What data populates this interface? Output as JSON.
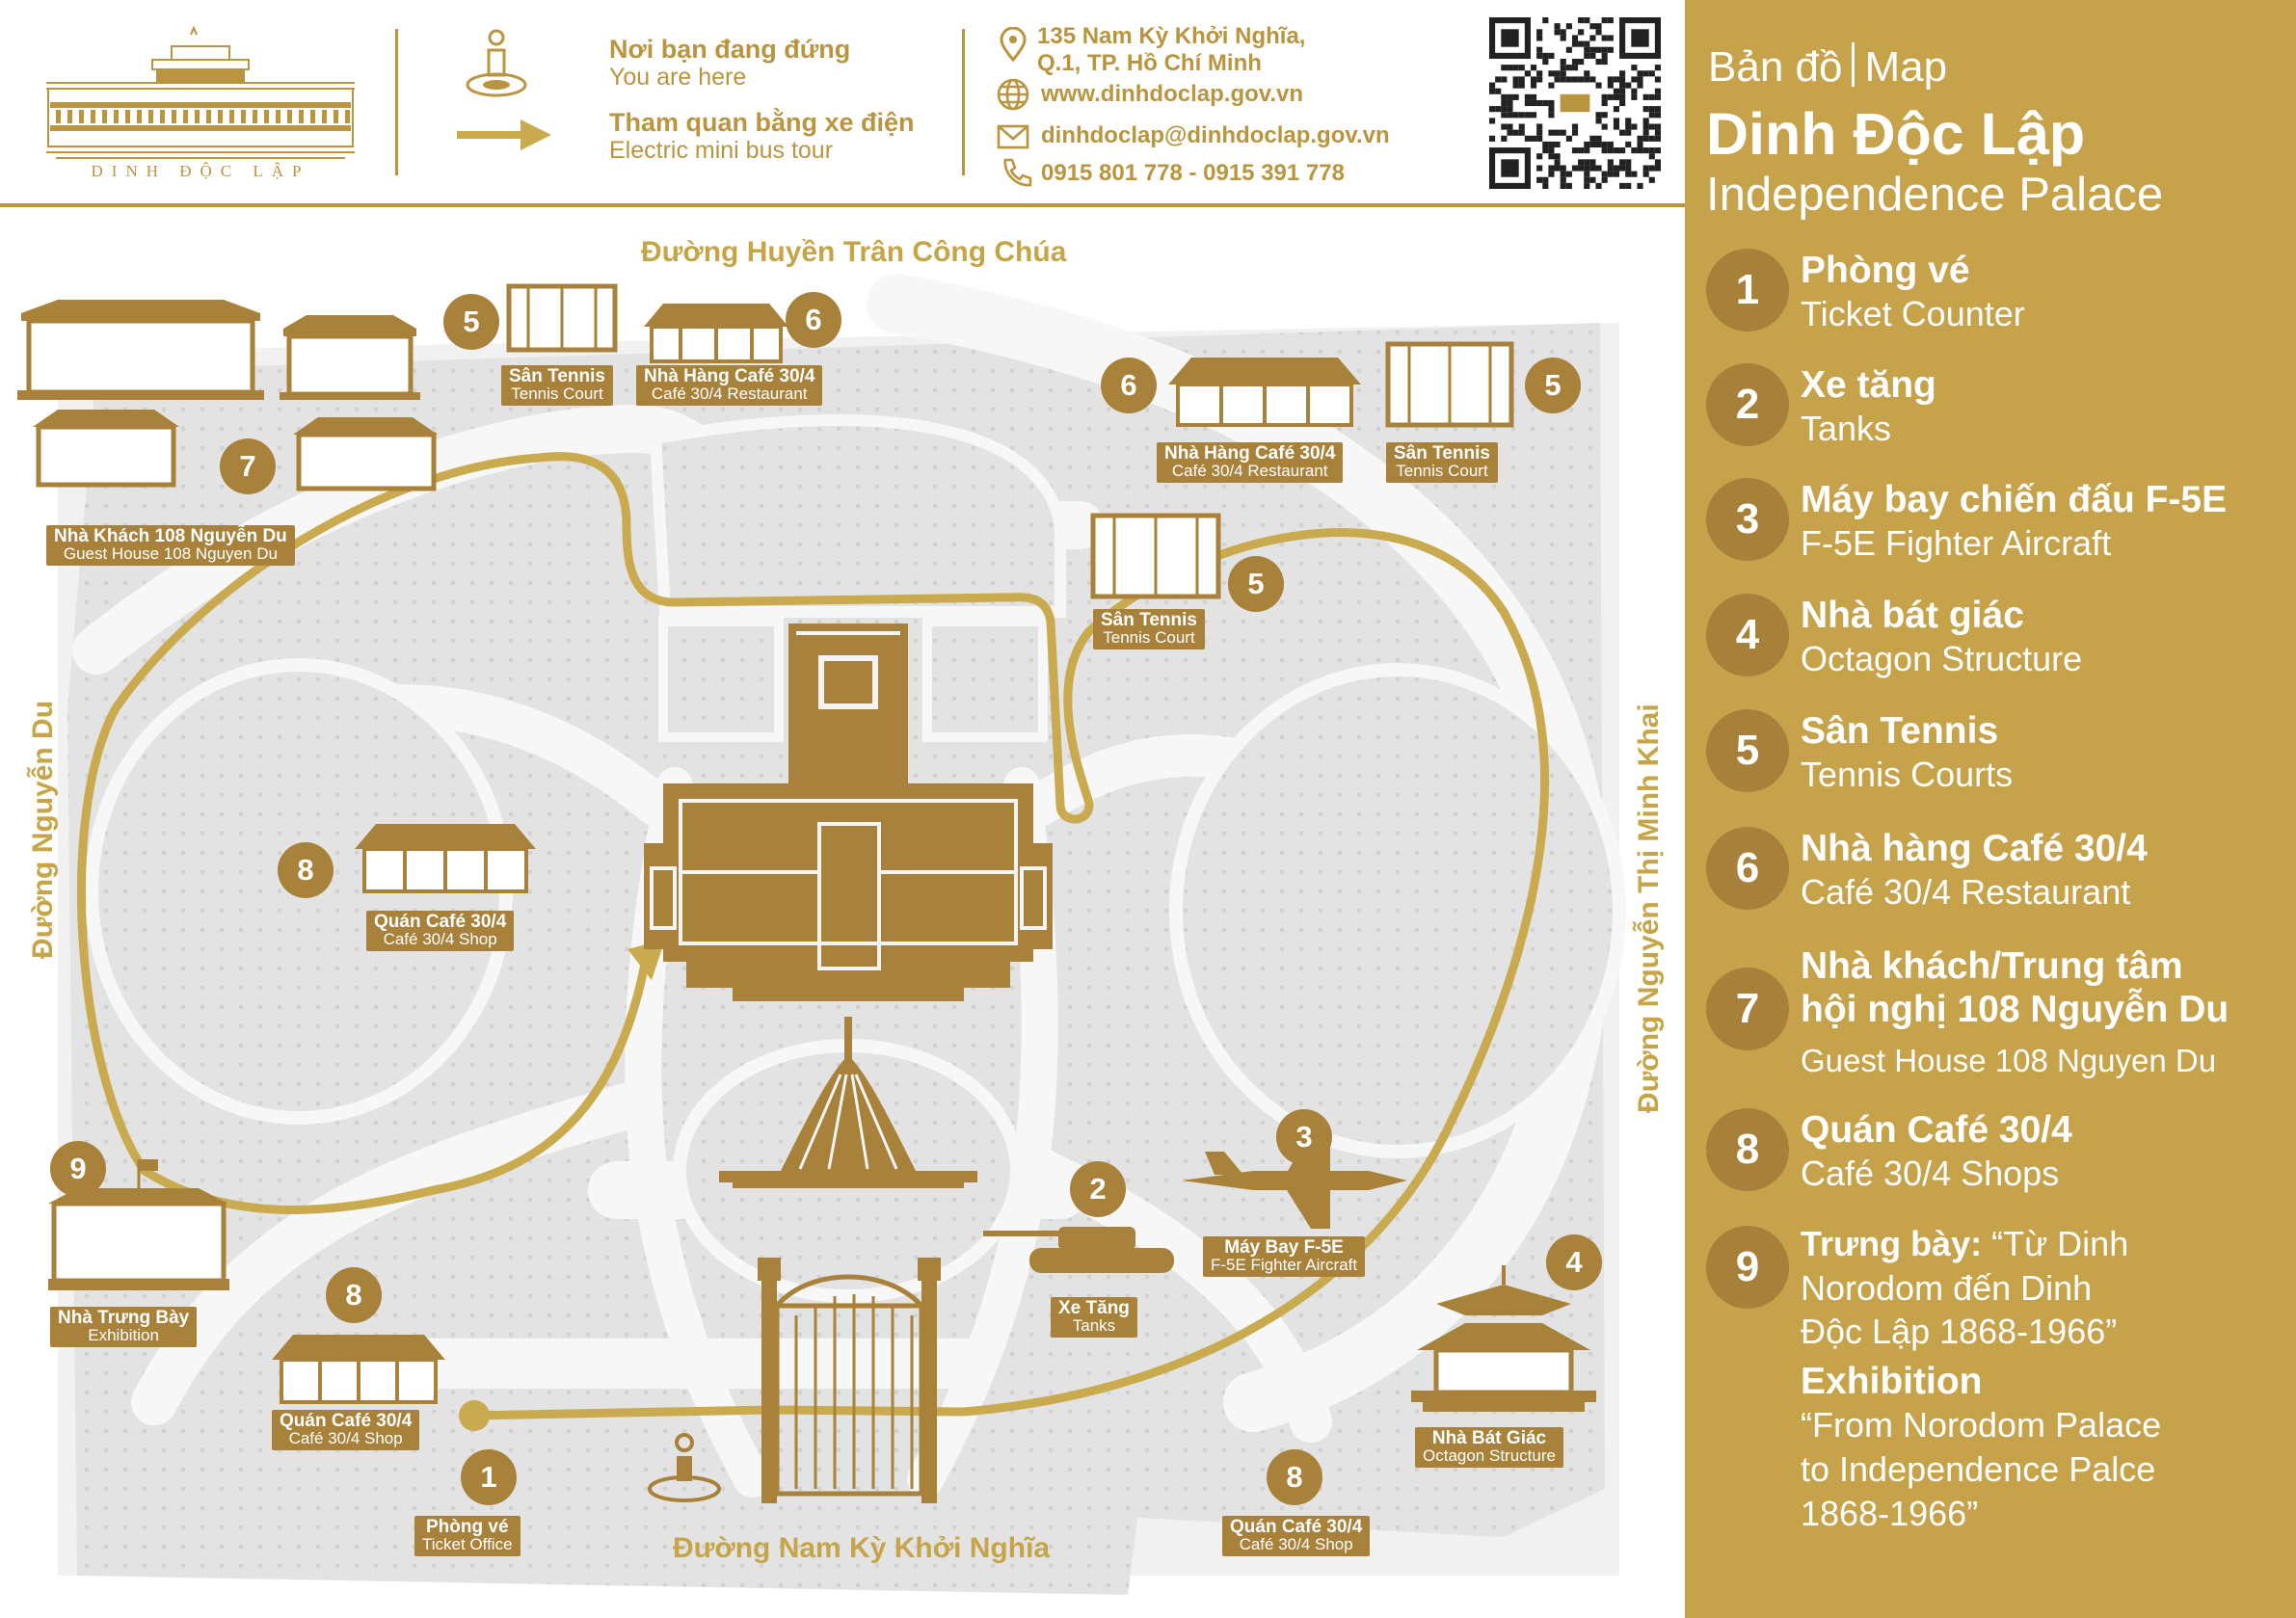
{
  "header": {
    "logo_text": "DINH ĐỘC LẬP",
    "legend": {
      "you_are_here_vi": "Nơi bạn đang đứng",
      "you_are_here_en": "You are here",
      "bus_tour_vi": "Tham quan bằng xe điện",
      "bus_tour_en": "Electric mini bus tour"
    },
    "contact": {
      "address_line1": "135 Nam Kỳ Khởi Nghĩa,",
      "address_line2": "Q.1, TP. Hồ Chí Minh",
      "website": "www.dinhdoclap.gov.vn",
      "email": "dinhdoclap@dinhdoclap.gov.vn",
      "phone": "0915 801 778 - 0915 391 778"
    }
  },
  "colors": {
    "gold": "#b8953e",
    "panel_gold": "#c6a34b",
    "badge_brown": "#a8823a",
    "route_gold": "#c9aa4e",
    "ground_gray": "#e3e3e3",
    "path_white": "#f4f4f4"
  },
  "icons": {
    "you_are_here": "location-person-icon",
    "bus_tour": "arrow-right-icon",
    "address": "map-pin-icon",
    "website": "globe-icon",
    "email": "envelope-icon",
    "phone": "phone-icon",
    "qr": "qr-code-icon"
  },
  "roads": {
    "north": "Đường Huyền Trân Công Chúa",
    "south": "Đường Nam Kỳ Khởi Nghĩa",
    "west": "Đường Nguyễn Du",
    "east": "Đường Nguyễn Thị Minh Khai"
  },
  "map_labels": {
    "tennis_top": {
      "vi": "Sân Tennis",
      "en": "Tennis Court",
      "num": "5"
    },
    "cafe_top": {
      "vi": "Nhà Hàng Café 30/4",
      "en": "Café 30/4 Restaurant",
      "num": "6"
    },
    "cafe_right": {
      "vi": "Nhà Hàng Café 30/4",
      "en": "Café 30/4 Restaurant",
      "num": "6"
    },
    "tennis_right_top": {
      "vi": "Sân Tennis",
      "en": "Tennis Court",
      "num": "5"
    },
    "tennis_right_mid": {
      "vi": "Sân Tennis",
      "en": "Tennis Court",
      "num": "5"
    },
    "guest_house": {
      "vi": "Nhà Khách 108 Nguyễn Du",
      "en": "Guest House 108 Nguyen Du",
      "num": "7"
    },
    "shop_west": {
      "vi": "Quán Café 30/4",
      "en": "Café 30/4 Shop",
      "num": "8"
    },
    "exhibition": {
      "vi": "Nhà Trưng Bày",
      "en": "Exhibition",
      "num": "9"
    },
    "shop_southwest": {
      "vi": "Quán Café 30/4",
      "en": "Café 30/4 Shop",
      "num": "8"
    },
    "ticket": {
      "vi": "Phòng vé",
      "en": "Ticket Office",
      "num": "1"
    },
    "tanks": {
      "vi": "Xe Tăng",
      "en": "Tanks",
      "num": "2"
    },
    "aircraft": {
      "vi": "Máy Bay F-5E",
      "en": "F-5E Fighter Aircraft",
      "num": "3"
    },
    "octagon": {
      "vi": "Nhà Bát Giác",
      "en": "Octagon Structure",
      "num": "4"
    },
    "shop_southeast": {
      "vi": "Quán Café 30/4",
      "en": "Café 30/4 Shop",
      "num": "8"
    }
  },
  "side": {
    "title_vi": "Bản đồ",
    "title_en": "Map",
    "name_vi": "Dinh Độc Lập",
    "name_en": "Independence Palace",
    "items": [
      {
        "num": "1",
        "vi": "Phòng vé",
        "en": "Ticket Counter"
      },
      {
        "num": "2",
        "vi": "Xe tăng",
        "en": "Tanks"
      },
      {
        "num": "3",
        "vi": "Máy bay chiến đấu F-5E",
        "en": "F-5E Fighter Aircraft"
      },
      {
        "num": "4",
        "vi": "Nhà bát giác",
        "en": "Octagon Structure"
      },
      {
        "num": "5",
        "vi": "Sân Tennis",
        "en": "Tennis Courts"
      },
      {
        "num": "6",
        "vi": "Nhà hàng Café 30/4",
        "en": "Café 30/4 Restaurant"
      },
      {
        "num": "7",
        "vi_line1": "Nhà khách/Trung tâm",
        "vi_line2": "hội nghị 108 Nguyễn Du",
        "en": "Guest House 108 Nguyen Du"
      },
      {
        "num": "8",
        "vi": "Quán Café 30/4",
        "en": "Café 30/4 Shops"
      },
      {
        "num": "9",
        "vi_bold": "Trưng bày:",
        "vi_quote_1": " “Từ Dinh",
        "vi_line2": "Norodom đến Dinh",
        "vi_line3": "Độc Lập 1868-1966”",
        "en_title": "Exhibition",
        "en_line1": "“From Norodom Palace",
        "en_line2": "to Independence Palce",
        "en_line3": "1868-1966”"
      }
    ]
  }
}
